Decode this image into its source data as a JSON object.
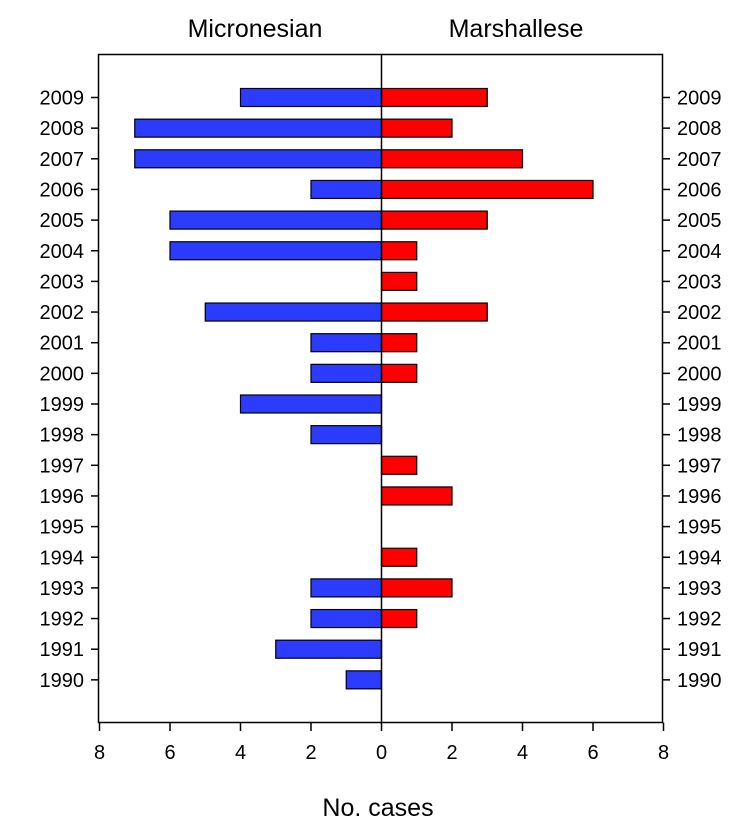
{
  "chart_data": {
    "type": "bar",
    "orientation": "horizontal-diverging",
    "categories": [
      "2009",
      "2008",
      "2007",
      "2006",
      "2005",
      "2004",
      "2003",
      "2002",
      "2001",
      "2000",
      "1999",
      "1998",
      "1997",
      "1996",
      "1995",
      "1994",
      "1993",
      "1992",
      "1991",
      "1990"
    ],
    "series": [
      {
        "name": "Micronesian",
        "side": "left",
        "color": "#2b3cff",
        "values": [
          4,
          7,
          7,
          2,
          6,
          6,
          0,
          5,
          2,
          2,
          4,
          2,
          0,
          0,
          0,
          0,
          2,
          2,
          3,
          1
        ]
      },
      {
        "name": "Marshallese",
        "side": "right",
        "color": "#ff0000",
        "values": [
          3,
          2,
          4,
          6,
          3,
          1,
          1,
          3,
          1,
          1,
          0,
          0,
          1,
          2,
          0,
          1,
          2,
          1,
          0,
          0
        ]
      }
    ],
    "xlabel": "No. cases",
    "x_ticks_left": [
      "8",
      "6",
      "4",
      "2",
      "0"
    ],
    "x_ticks_right": [
      "2",
      "4",
      "6",
      "8"
    ],
    "xlim": [
      0,
      8
    ],
    "grid": false,
    "legend": "none"
  }
}
